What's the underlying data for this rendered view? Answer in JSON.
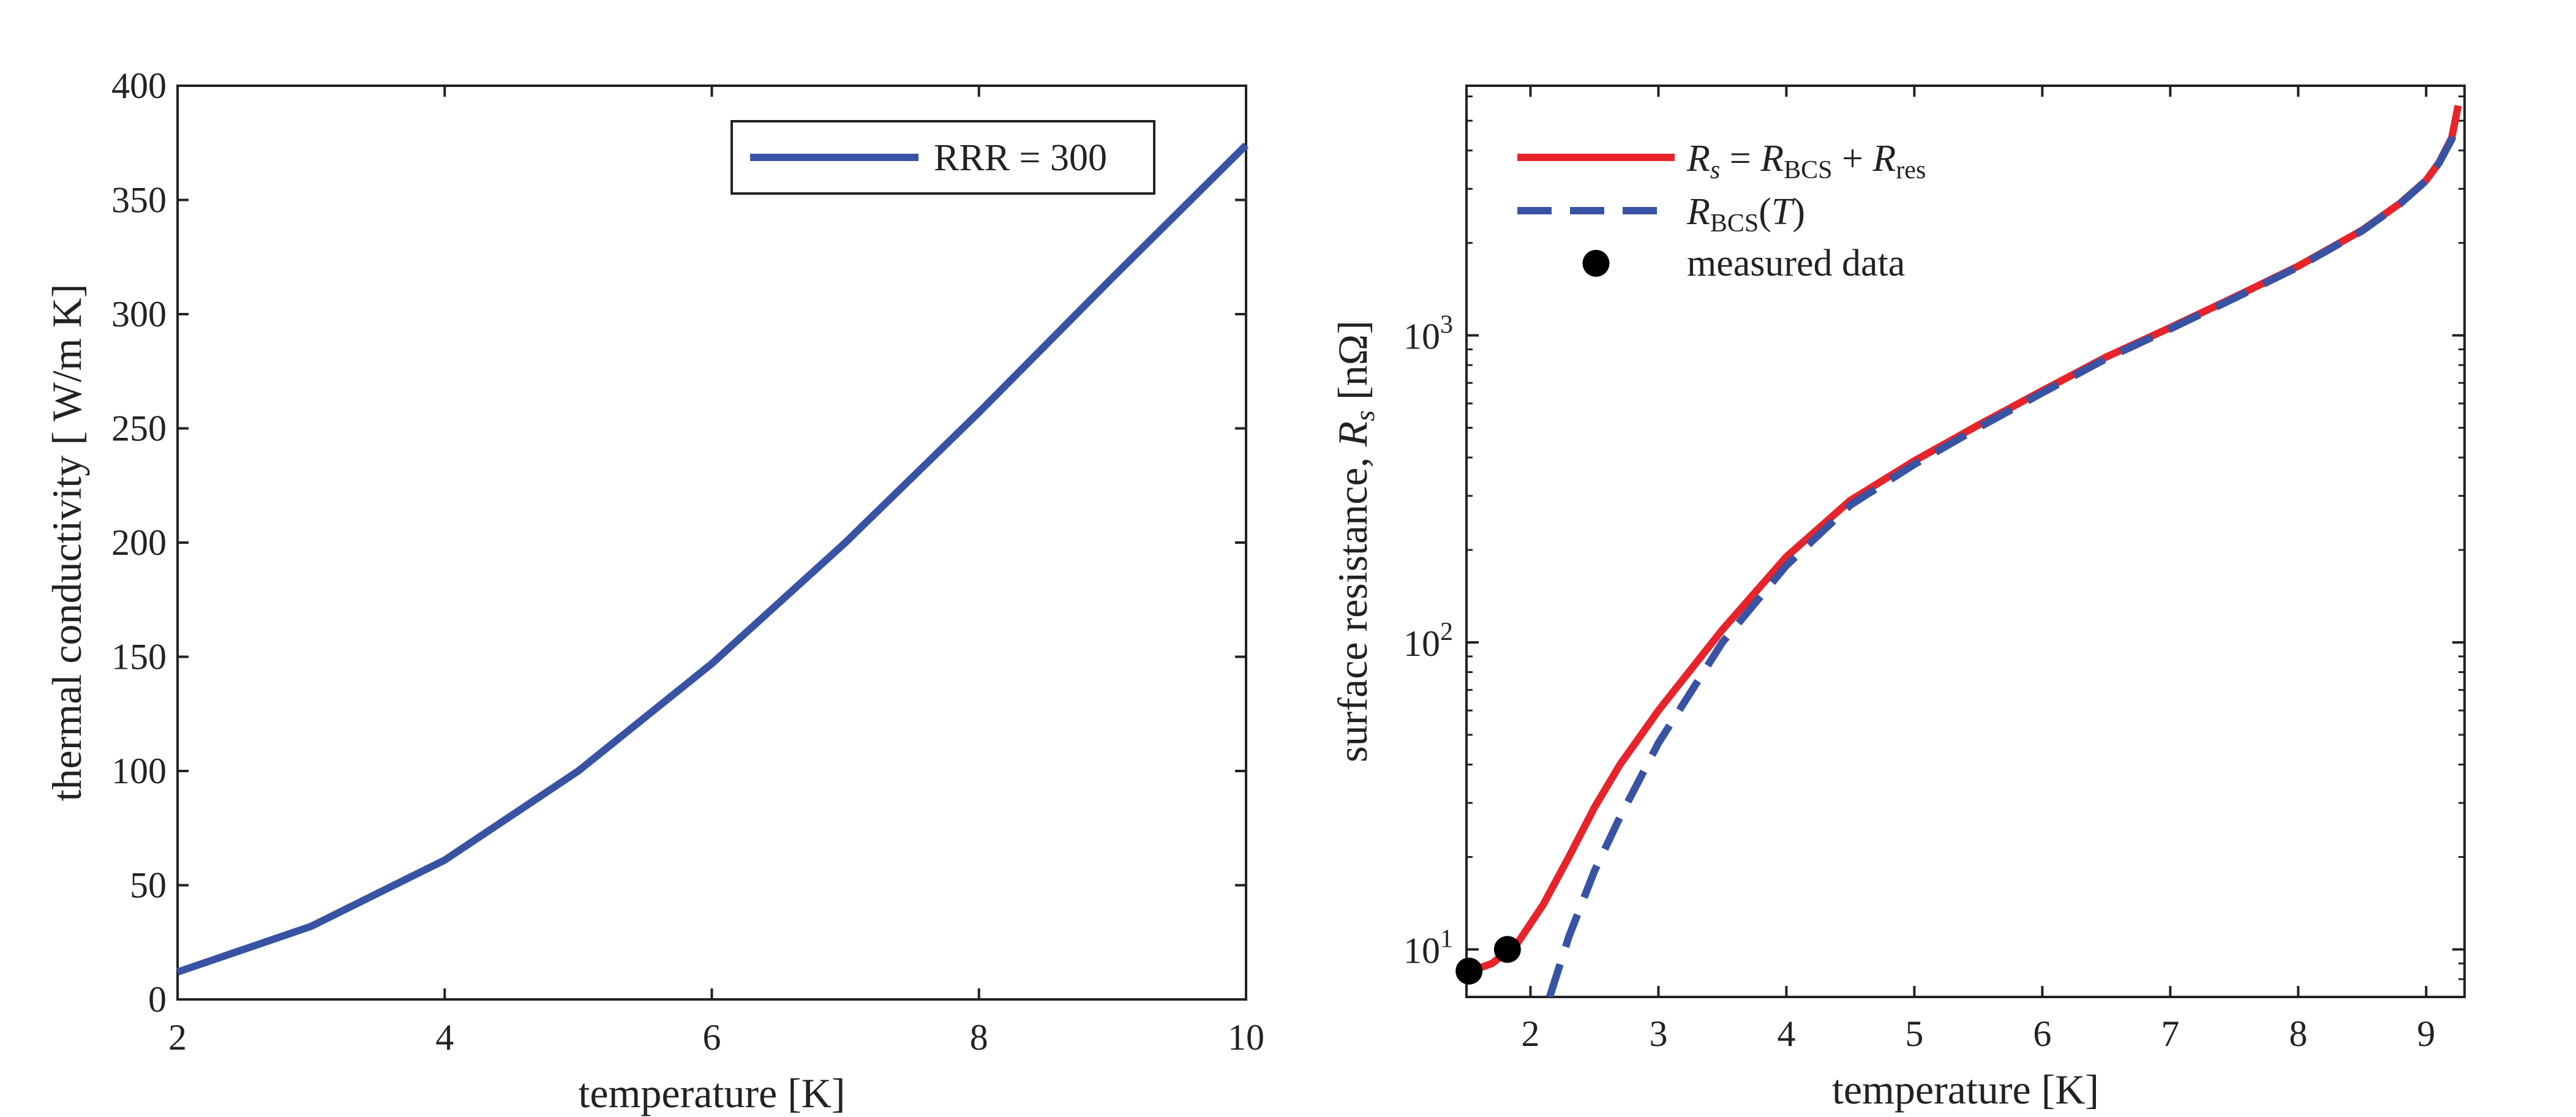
{
  "colors": {
    "blue": "#3853A4",
    "red": "#E8232A",
    "black": "#000000",
    "axis": "#222222"
  },
  "chart_data": [
    {
      "type": "line",
      "title": "",
      "xlabel": "temperature [K]",
      "ylabel": "thermal conductivity [ W/m  K]",
      "xlim": [
        2,
        10
      ],
      "ylim": [
        0,
        400
      ],
      "xticks": [
        2,
        4,
        6,
        8,
        10
      ],
      "xtick_labels": [
        "2",
        "4",
        "6",
        "8",
        "10"
      ],
      "yticks": [
        0,
        50,
        100,
        150,
        200,
        250,
        300,
        350,
        400
      ],
      "ytick_labels": [
        "0",
        "50",
        "100",
        "150",
        "200",
        "250",
        "300",
        "350",
        "400"
      ],
      "grid": false,
      "legend_position": "top-right",
      "series": [
        {
          "name": "RRR = 300",
          "color": "#3853A4",
          "dash": "solid",
          "x": [
            2,
            3,
            4,
            5,
            6,
            7,
            8,
            9,
            10
          ],
          "y": [
            12,
            32,
            61,
            100,
            147,
            200,
            257,
            316,
            374
          ]
        }
      ]
    },
    {
      "type": "line",
      "title": "",
      "xlabel": "temperature [K]",
      "ylabel_text": "surface resistance,",
      "ylabel_symbol": "R",
      "ylabel_sub": "s",
      "ylabel_unit": "[nΩ]",
      "xlim": [
        1.5,
        9.3
      ],
      "ylim": [
        7,
        6500
      ],
      "yscale": "log",
      "xticks": [
        2,
        3,
        4,
        5,
        6,
        7,
        8,
        9
      ],
      "xtick_labels": [
        "2",
        "3",
        "4",
        "5",
        "6",
        "7",
        "8",
        "9"
      ],
      "ytick_base": "10",
      "yticks": [
        {
          "value": 10,
          "exp": "1"
        },
        {
          "value": 100,
          "exp": "2"
        },
        {
          "value": 1000,
          "exp": "3"
        }
      ],
      "grid": false,
      "legend_position": "top-left",
      "legend": [
        {
          "sym": "R",
          "sub": "s",
          "eq": " = ",
          "sym2": "R",
          "sub2": "BCS",
          "plus": " + ",
          "sym3": "R",
          "sub3": "res"
        },
        {
          "sym": "R",
          "sub": "BCS",
          "arg": "(",
          "var": "T",
          "close": ")"
        },
        {
          "label": "measured data"
        }
      ],
      "series": [
        {
          "name": "Rs = RBCS + Rres",
          "color": "#E8232A",
          "dash": "solid",
          "x": [
            1.5,
            1.7,
            1.9,
            2.1,
            2.3,
            2.5,
            2.7,
            3.0,
            3.5,
            4.0,
            4.5,
            5.0,
            5.5,
            6.0,
            6.5,
            7.0,
            7.5,
            8.0,
            8.5,
            8.8,
            9.0,
            9.1,
            9.2,
            9.25
          ],
          "y": [
            8.4,
            9.0,
            10.5,
            14,
            20,
            29,
            40,
            60,
            110,
            190,
            290,
            390,
            510,
            660,
            850,
            1060,
            1330,
            1680,
            2200,
            2700,
            3200,
            3650,
            4400,
            5600
          ]
        },
        {
          "name": "RBCS(T)",
          "color": "#3853A4",
          "dash": "dashed",
          "x": [
            2.15,
            2.3,
            2.5,
            2.7,
            3.0,
            3.5,
            4.0,
            4.5,
            5.0,
            5.5,
            6.0,
            6.5,
            7.0,
            7.5,
            8.0,
            8.5,
            8.8,
            9.0,
            9.1,
            9.2,
            9.25
          ],
          "y": [
            7,
            11,
            18,
            27,
            47,
            100,
            178,
            280,
            380,
            500,
            650,
            840,
            1050,
            1320,
            1670,
            2190,
            2690,
            3190,
            3640,
            4350,
            5000
          ]
        },
        {
          "name": "measured data",
          "type": "scatter",
          "color": "#000000",
          "x": [
            1.52,
            1.82
          ],
          "y": [
            8.5,
            10.0
          ]
        }
      ]
    }
  ]
}
